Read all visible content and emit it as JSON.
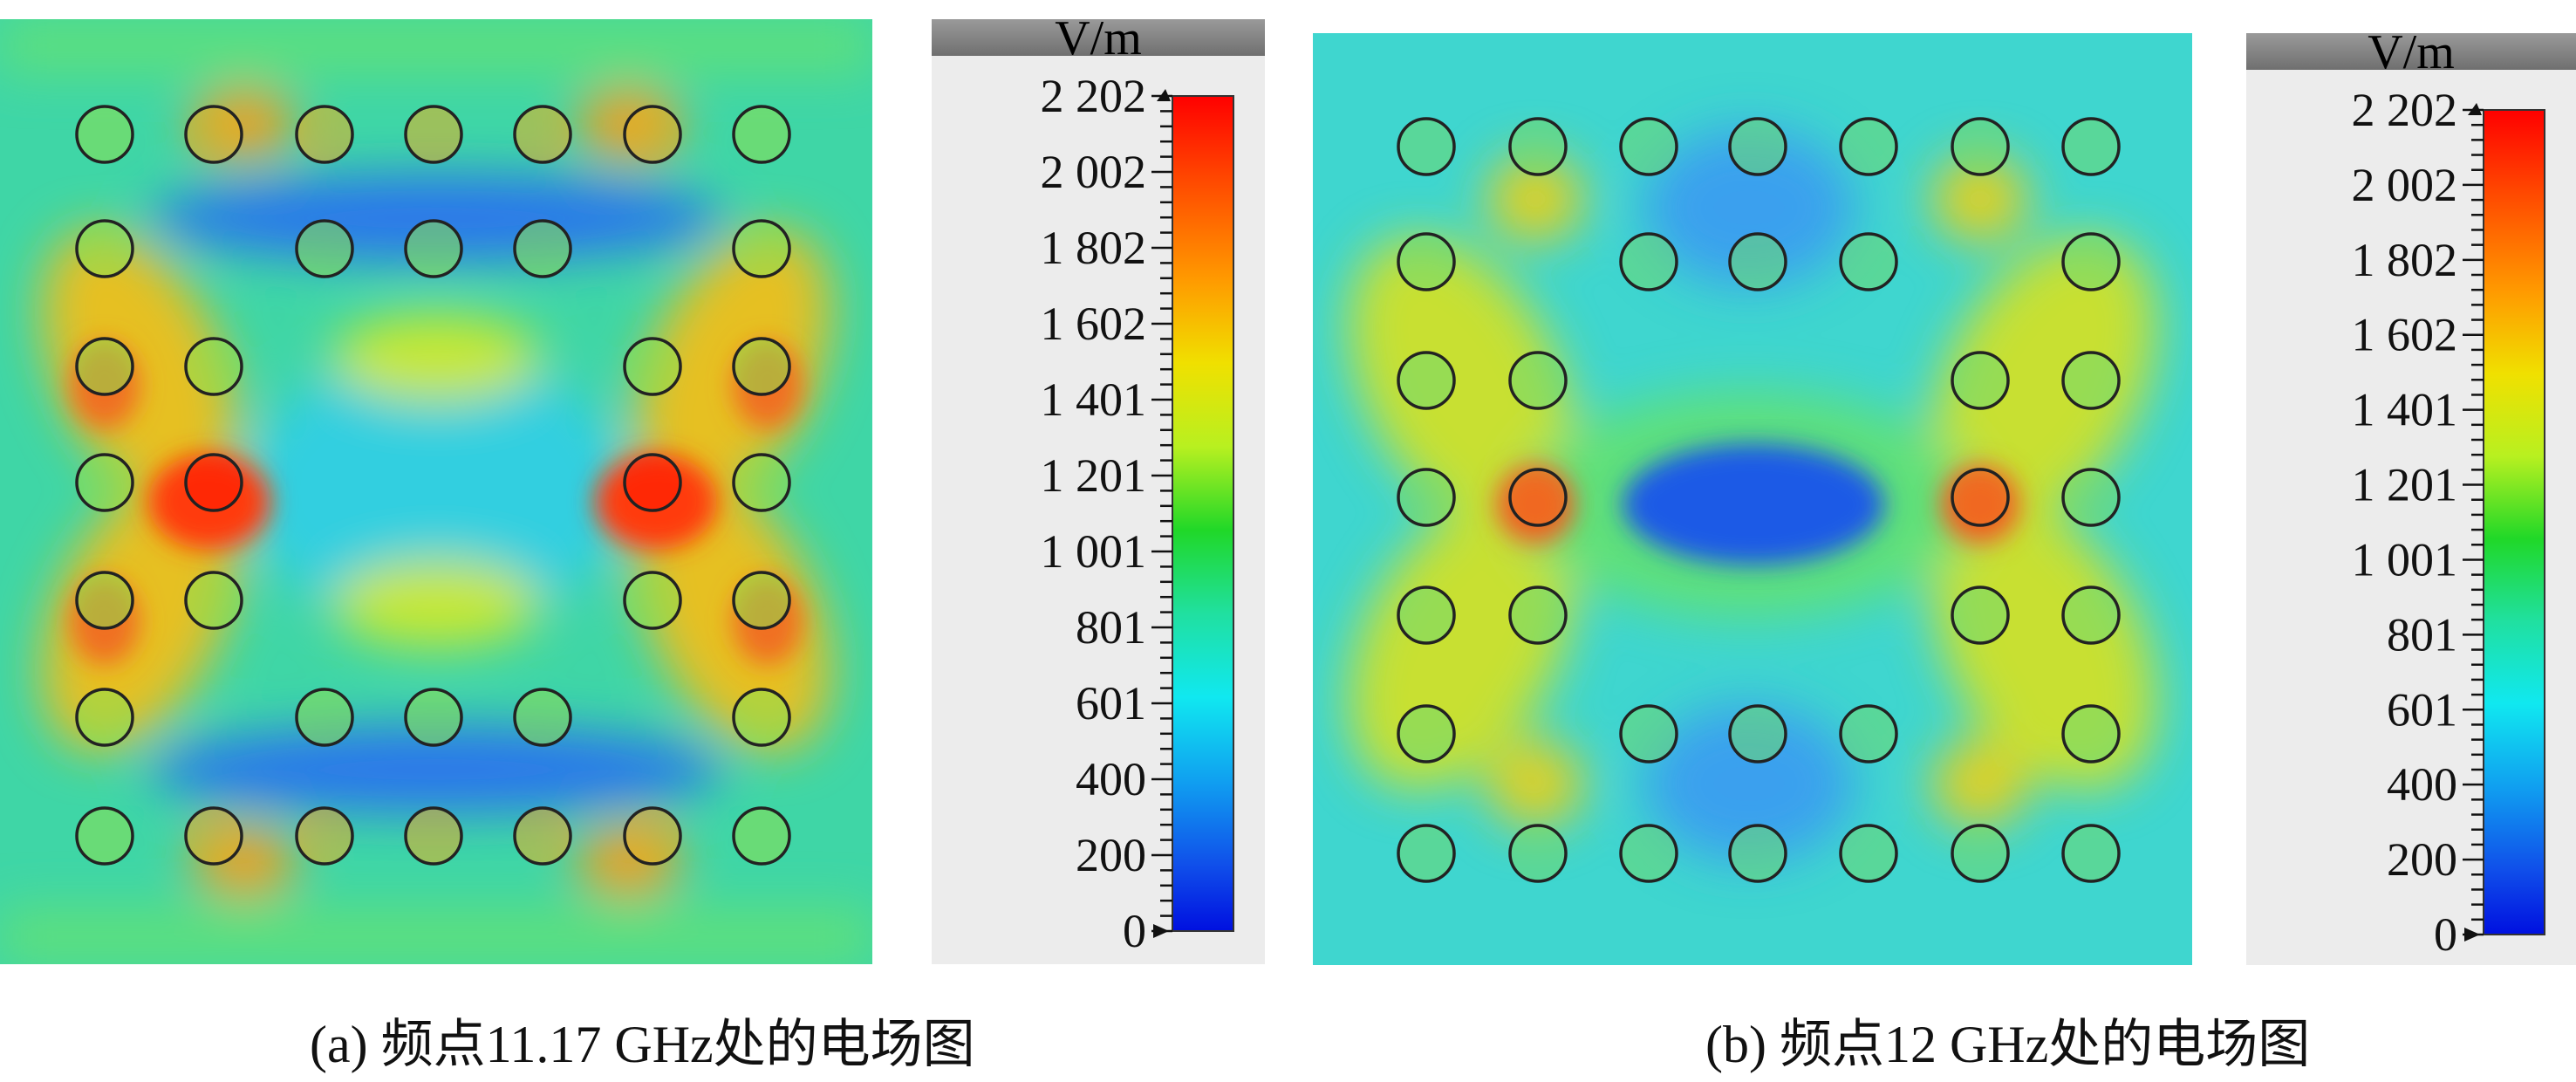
{
  "panels": [
    {
      "id": "a",
      "caption": "(a) 频点11.17 GHz处的电场图",
      "colorbar": {
        "unit": "V/m",
        "ticks": [
          "2 202",
          "2 002",
          "1 802",
          "1 602",
          "1 401",
          "1 201",
          "1 001",
          "801",
          "601",
          "400",
          "200",
          "0"
        ]
      }
    },
    {
      "id": "b",
      "caption": "(b) 频点12 GHz处的电场图",
      "colorbar": {
        "unit": "V/m",
        "ticks": [
          "2 202",
          "2 002",
          "1 802",
          "1 602",
          "1 401",
          "1 201",
          "1 001",
          "801",
          "601",
          "400",
          "200",
          "0"
        ]
      }
    }
  ],
  "colors": {
    "background_field": "#3fd6a6",
    "low_field": "#1e64e6",
    "high_field": "#ff2a0a",
    "rod_outline": "#222222"
  }
}
